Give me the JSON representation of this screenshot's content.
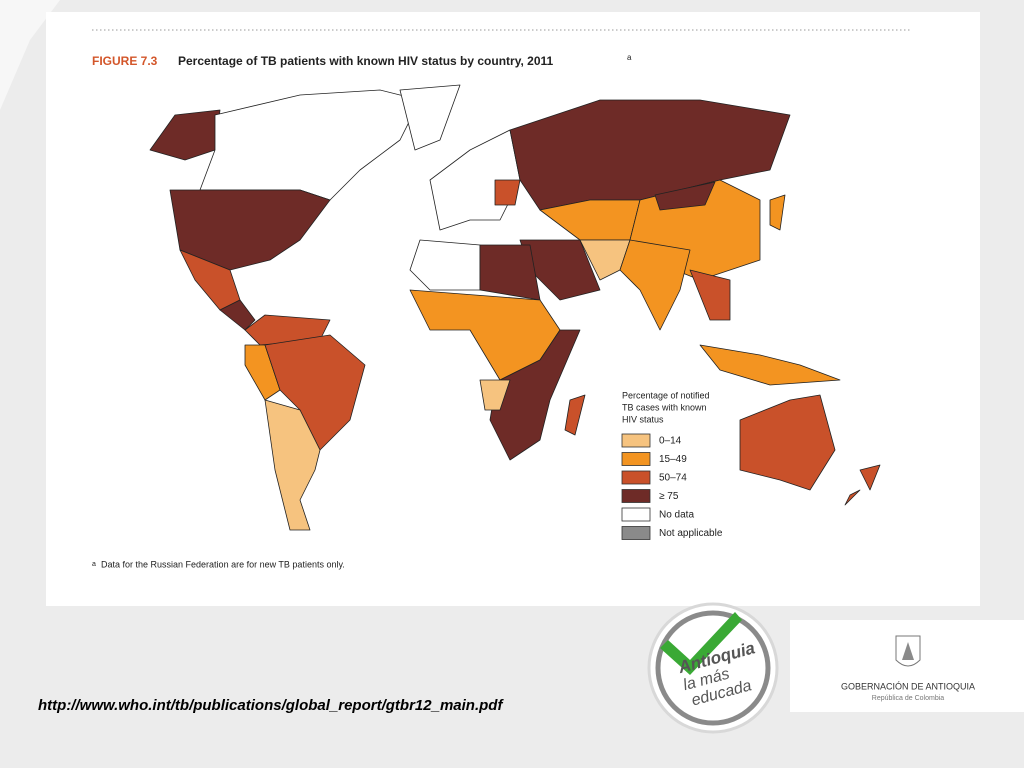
{
  "figure": {
    "label": "FIGURE 7.3",
    "title": "Percentage of TB patients with known HIV status by country, 2011",
    "title_note": "a"
  },
  "legend": {
    "title_lines": [
      "Percentage of notified",
      "TB cases with known",
      "HIV status"
    ],
    "items": [
      {
        "label": "0–14",
        "color": "#f6c37f"
      },
      {
        "label": "15–49",
        "color": "#f39421"
      },
      {
        "label": "50–74",
        "color": "#c9512a"
      },
      {
        "label": "≥ 75",
        "color": "#6e2b27"
      },
      {
        "label": "No data",
        "color": "#ffffff"
      },
      {
        "label": "Not applicable",
        "color": "#8a8a8a"
      }
    ]
  },
  "footnote": {
    "marker": "a",
    "text": "Data for the Russian Federation are for new TB patients only."
  },
  "source_url": "http://www.who.int/tb/publications/global_report/gtbr12_main.pdf",
  "logo": {
    "lines": [
      "Antioquia",
      "la más",
      "educada"
    ]
  },
  "government": {
    "name": "GOBERNACIÓN DE ANTIOQUIA",
    "subtitle": "República de Colombia"
  }
}
